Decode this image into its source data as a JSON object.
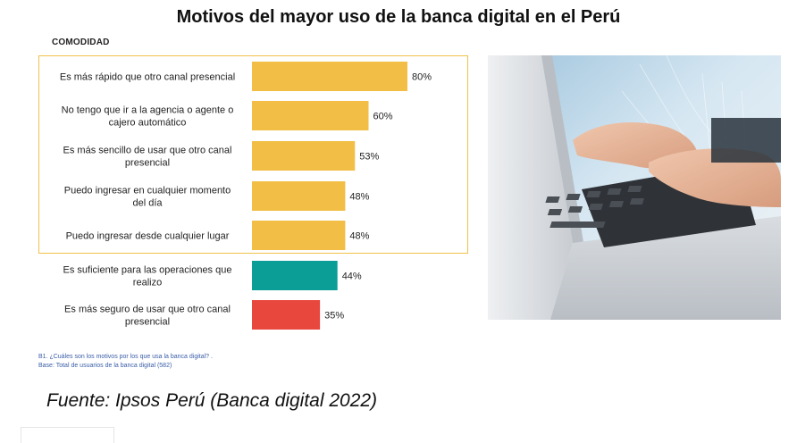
{
  "title": "Motivos del mayor uso de la banca digital en el Perú",
  "section_label": "COMODIDAD",
  "note_lines": [
    "B1. ¿Cuáles son los motivos por los que usa la banca digital? .",
    "Base: Total de usuarios de la banca digital  (582)"
  ],
  "source": "Fuente: Ipsos Perú (Banca digital 2022)",
  "chart_data": {
    "type": "bar",
    "orientation": "horizontal",
    "title": "Motivos del mayor uso de la banca digital en el Perú",
    "categories": [
      [
        "Es más rápido que otro canal presencial"
      ],
      [
        "No tengo que ir a la agencia o agente o",
        "cajero automático"
      ],
      [
        "Es más sencillo de usar que otro canal",
        "presencial"
      ],
      [
        "Puedo ingresar en cualquier momento",
        "del día"
      ],
      [
        "Puedo ingresar desde cualquier lugar"
      ],
      [
        "Es suficiente para las operaciones que",
        "realizo"
      ],
      [
        "Es más seguro de usar que otro canal",
        "presencial"
      ]
    ],
    "values": [
      80,
      60,
      53,
      48,
      48,
      44,
      35
    ],
    "value_labels": [
      "80%",
      "60%",
      "53%",
      "48%",
      "48%",
      "44%",
      "35%"
    ],
    "bar_colors": [
      "#f2be46",
      "#f2be46",
      "#f2be46",
      "#f2be46",
      "#f2be46",
      "#0a9e96",
      "#e8473e"
    ],
    "xlim": [
      0,
      100
    ],
    "grid": false,
    "legend": "none"
  }
}
